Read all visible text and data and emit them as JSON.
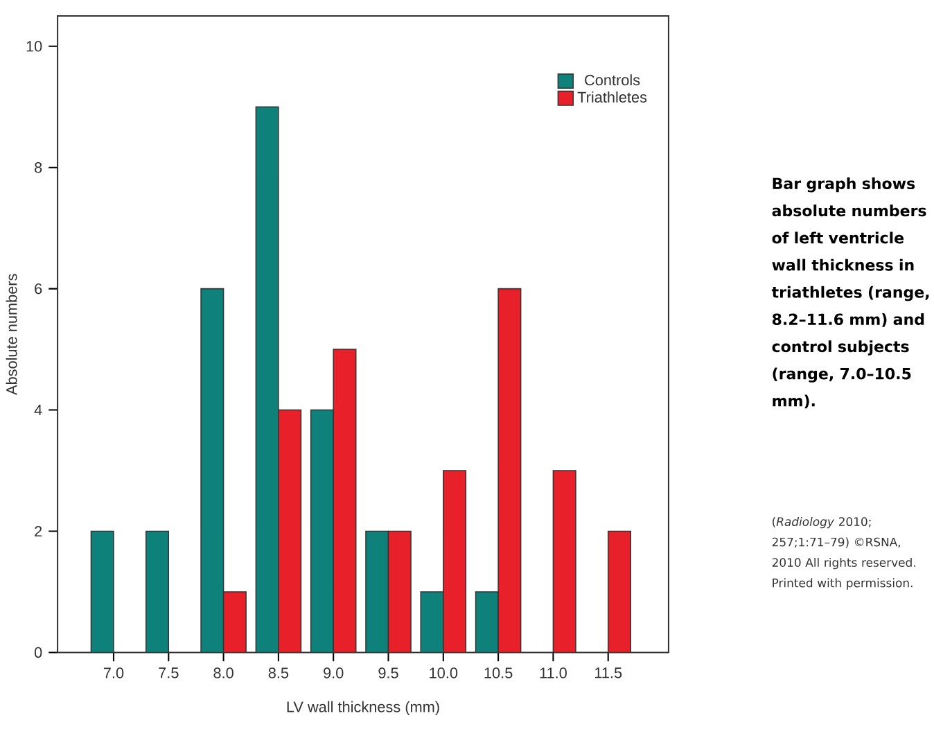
{
  "chart_data": {
    "type": "bar",
    "xlabel": "LV wall thickness (mm)",
    "ylabel": "Absolute numbers",
    "categories": [
      "7.0",
      "7.5",
      "8.0",
      "8.5",
      "9.0",
      "9.5",
      "10.0",
      "10.5",
      "11.0",
      "11.5"
    ],
    "series": [
      {
        "name": "Controls",
        "color": "#0e827a",
        "values": [
          2,
          2,
          6,
          9,
          4,
          2,
          1,
          1,
          0,
          0
        ]
      },
      {
        "name": "Triathletes",
        "color": "#e8202a",
        "values": [
          0,
          0,
          1,
          4,
          5,
          2,
          3,
          6,
          3,
          2
        ]
      }
    ],
    "ylim": [
      0,
      10.5
    ],
    "yticks": [
      0,
      2,
      4,
      6,
      8,
      10
    ],
    "legend": "top right",
    "grid": false,
    "annotations": [
      "Bar graph shows absolute numbers of left ventricle wall thickness in triathletes (range, 8.2–11.6 mm) and control subjects (range, 7.0–10.5 mm).",
      "(*Radiology* 2010; 257;1:71–79) ©RSNA, 2010 All rights reserved. Printed with permission."
    ]
  }
}
